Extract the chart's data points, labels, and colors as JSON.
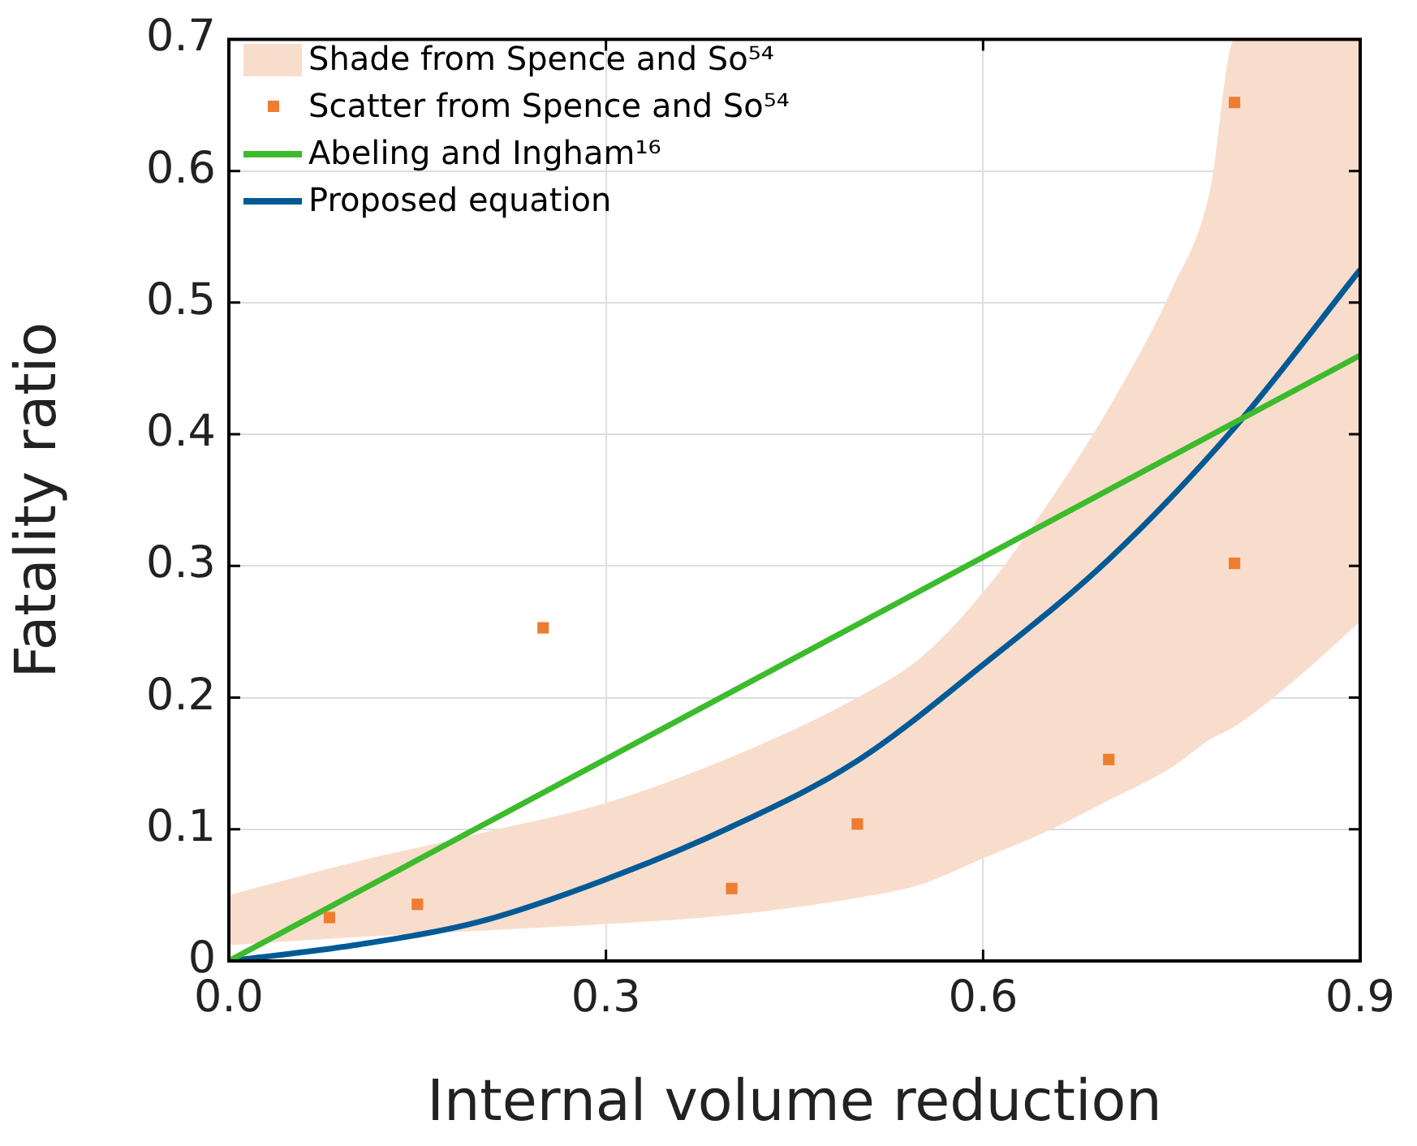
{
  "chart_data": {
    "type": "line",
    "xlabel": "Internal volume reduction",
    "ylabel": "Fatality ratio",
    "xlim": [
      0,
      0.9
    ],
    "xticks": [
      {
        "value": 0,
        "label": "0.0"
      },
      0.3,
      0.6,
      0.9
    ],
    "ylim": [
      0,
      0.7
    ],
    "yticks": [
      0,
      0.1,
      0.2,
      0.3,
      0.4,
      0.5,
      0.6,
      0.7
    ],
    "grid": true,
    "legend": "top left",
    "series": [
      {
        "name": "Shade from Spence and So⁵⁴",
        "type": "area",
        "color": "#f9ddcc",
        "x": [
          0,
          0.1,
          0.2,
          0.3,
          0.4,
          0.5,
          0.55,
          0.6,
          0.65,
          0.7,
          0.75,
          0.78,
          0.8,
          0.85,
          0.9
        ],
        "values": [
          null,
          null,
          null,
          null,
          null,
          null,
          null,
          null,
          null,
          null,
          null,
          null,
          null,
          null,
          null
        ],
        "lower": [
          0.012,
          0.018,
          0.023,
          0.028,
          0.035,
          0.048,
          0.058,
          0.078,
          0.098,
          0.122,
          0.147,
          0.168,
          0.178,
          0.215,
          0.258
        ],
        "upper": [
          0.05,
          0.075,
          0.097,
          0.12,
          0.155,
          0.2,
          0.23,
          0.28,
          0.345,
          0.42,
          0.51,
          0.583,
          0.7,
          0.7,
          0.7
        ]
      },
      {
        "name": "Scatter from Spence and So⁵⁴",
        "type": "scatter",
        "color": "#ed7d31",
        "marker": "square",
        "x": [
          0.08,
          0.15,
          0.25,
          0.4,
          0.5,
          0.7,
          0.8,
          0.8
        ],
        "values": [
          0.033,
          0.043,
          0.253,
          0.055,
          0.104,
          0.153,
          0.302,
          0.652
        ]
      },
      {
        "name": "Abeling and Ingham¹⁶",
        "type": "line",
        "color": "#3cbb2c",
        "x": [
          0,
          0.9
        ],
        "values": [
          0,
          0.46
        ]
      },
      {
        "name": "Proposed equation",
        "type": "line",
        "color": "#005a96",
        "x": [
          0,
          0.1,
          0.2,
          0.3,
          0.4,
          0.5,
          0.6,
          0.7,
          0.8,
          0.9
        ],
        "values": [
          0,
          0.012,
          0.03,
          0.062,
          0.102,
          0.152,
          0.225,
          0.305,
          0.405,
          0.525
        ]
      }
    ]
  }
}
